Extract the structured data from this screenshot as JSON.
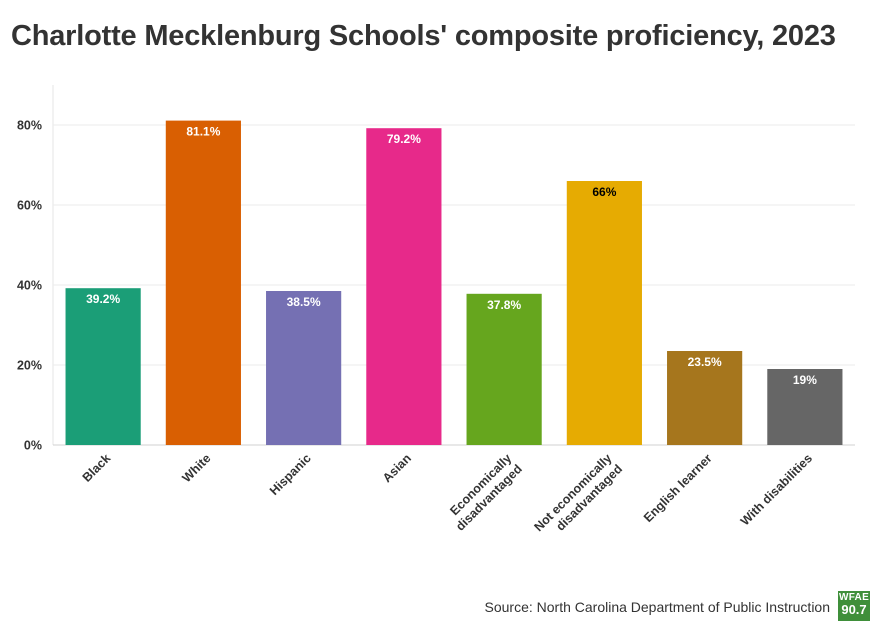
{
  "header": {
    "title": "Charlotte Mecklenburg Schools' composite proficiency, 2023"
  },
  "footer": {
    "source": "Source: North Carolina Department of Public Instruction",
    "logo_top": "WFAE",
    "logo_bottom": "90.7"
  },
  "chart_data": {
    "type": "bar",
    "title": "Charlotte Mecklenburg Schools' composite proficiency, 2023",
    "xlabel": "",
    "ylabel": "",
    "ylim": [
      0,
      90
    ],
    "yticks": [
      0,
      20,
      40,
      60,
      80
    ],
    "ytick_labels": [
      "0%",
      "20%",
      "40%",
      "60%",
      "80%"
    ],
    "grid": true,
    "legend": "none",
    "categories": [
      [
        "Black"
      ],
      [
        "White"
      ],
      [
        "Hispanic"
      ],
      [
        "Asian"
      ],
      [
        "Economically",
        "disadvantaged"
      ],
      [
        "Not economically",
        "disadvantaged"
      ],
      [
        "English learner"
      ],
      [
        "With disabilities"
      ]
    ],
    "values": [
      39.2,
      81.1,
      38.5,
      79.2,
      37.8,
      66,
      23.5,
      19
    ],
    "data_labels": [
      "39.2%",
      "81.1%",
      "38.5%",
      "79.2%",
      "37.8%",
      "66%",
      "23.5%",
      "19%"
    ],
    "colors": [
      "#1b9e77",
      "#d95f02",
      "#7570b3",
      "#e7298a",
      "#66a61e",
      "#e6ab02",
      "#a6761d",
      "#666666"
    ],
    "label_colors": [
      "#ffffff",
      "#ffffff",
      "#ffffff",
      "#ffffff",
      "#ffffff",
      "#000000",
      "#ffffff",
      "#ffffff"
    ]
  }
}
